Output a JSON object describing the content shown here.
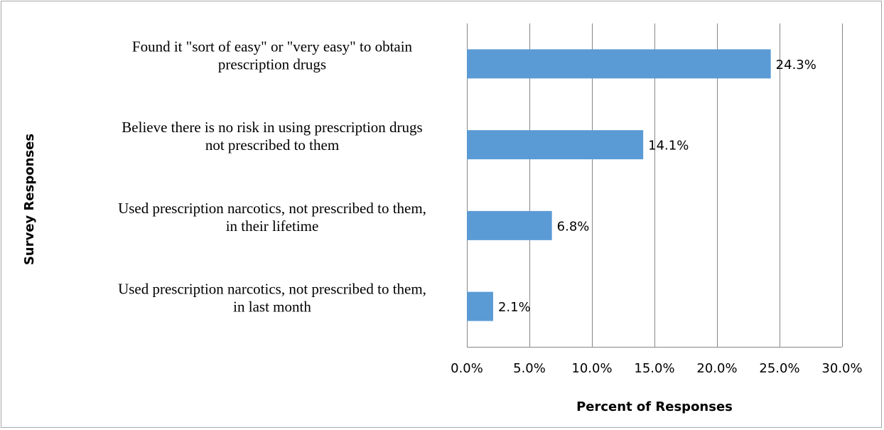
{
  "chart_data": {
    "type": "bar",
    "orientation": "horizontal",
    "categories": [
      "Found it \"sort of easy\" or \"very easy\" to obtain prescription drugs",
      "Believe there is no risk in using prescription drugs not prescribed to them",
      "Used prescription narcotics, not prescribed to them, in their lifetime",
      "Used prescription narcotics, not prescribed to them, in last month"
    ],
    "category_lines": [
      [
        "Found it \"sort of easy\" or \"very easy\" to obtain",
        "prescription drugs"
      ],
      [
        "Believe there is no risk in using prescription drugs",
        "not prescribed to them"
      ],
      [
        "Used prescription narcotics, not prescribed to them,",
        "in their lifetime"
      ],
      [
        "Used prescription narcotics, not prescribed to them,",
        "in last month"
      ]
    ],
    "values": [
      24.3,
      14.1,
      6.8,
      2.1
    ],
    "data_labels": [
      "24.3%",
      "14.1%",
      "6.8%",
      "2.1%"
    ],
    "xlim": [
      0,
      30
    ],
    "xticks": [
      0,
      5,
      10,
      15,
      20,
      25,
      30
    ],
    "xtick_labels": [
      "0.0%",
      "5.0%",
      "10.0%",
      "15.0%",
      "20.0%",
      "25.0%",
      "30.0%"
    ],
    "xlabel": "Percent of Responses",
    "ylabel": "Survey Responses",
    "title": "",
    "grid": "vertical",
    "legend": "none",
    "bar_color": "#5b9bd5",
    "grid_color": "#868686"
  }
}
